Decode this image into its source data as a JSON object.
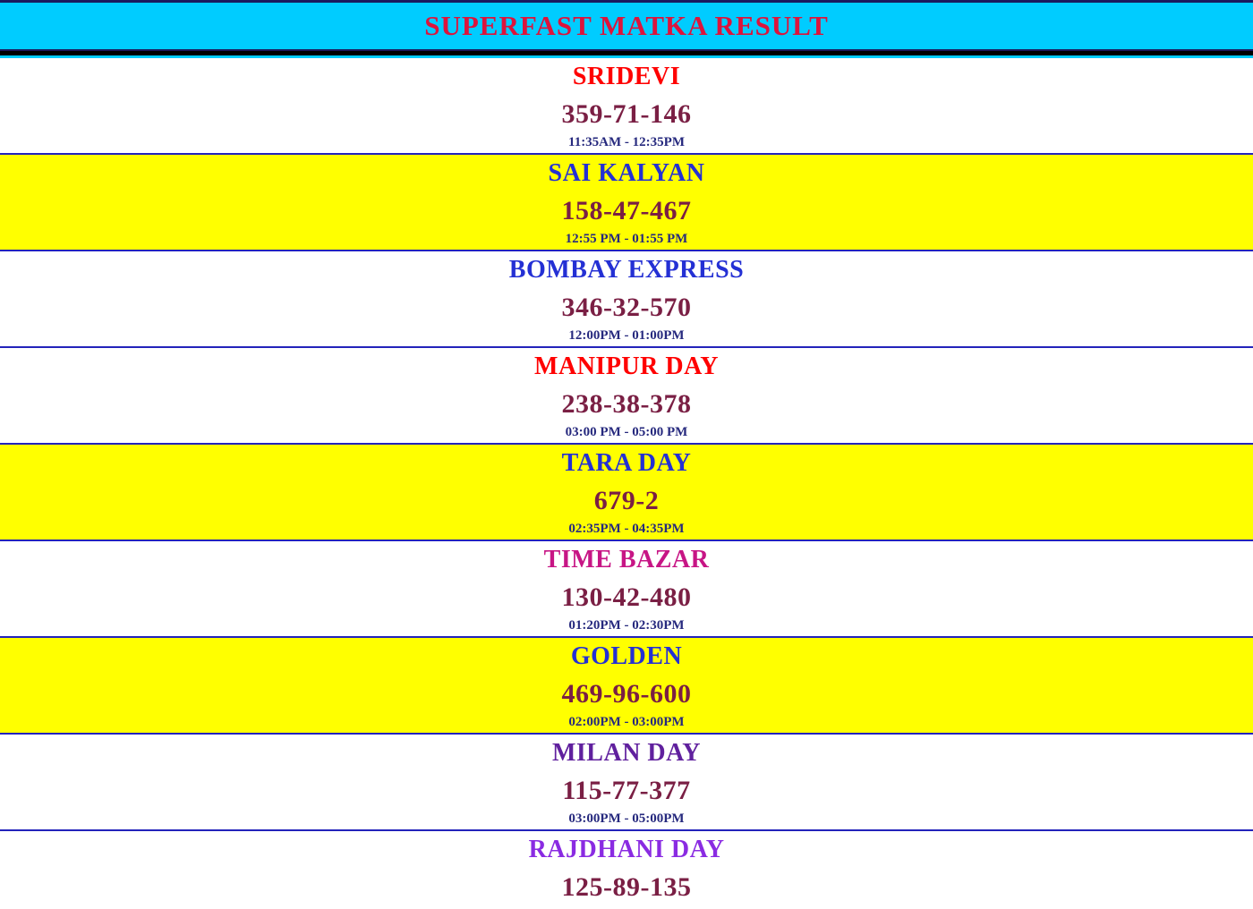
{
  "header": {
    "title": "SUPERFAST MATKA RESULT"
  },
  "colors": {
    "header_bg": "#00CCFF",
    "header_title": "#DC143C",
    "header_border": "#1A1A5E",
    "divider_black": "#000000",
    "cyan_strip": "#00CCFF",
    "row_separator": "#2323BB",
    "result_text": "#7A1F44",
    "time_text": "#26297E",
    "yellow_row": "#FFFF00",
    "white_row": "#FFFFFF"
  },
  "markets": [
    {
      "name": "SRIDEVI",
      "result": "359-71-146",
      "time": "11:35AM - 12:35PM",
      "name_color": "#FF0000",
      "row_bg": "#FFFFFF"
    },
    {
      "name": "SAI KALYAN",
      "result": "158-47-467",
      "time": "12:55 PM - 01:55 PM",
      "name_color": "#2430D4",
      "row_bg": "#FFFF00"
    },
    {
      "name": "BOMBAY EXPRESS",
      "result": "346-32-570",
      "time": "12:00PM - 01:00PM",
      "name_color": "#2430D4",
      "row_bg": "#FFFFFF"
    },
    {
      "name": "MANIPUR DAY",
      "result": "238-38-378",
      "time": "03:00 PM - 05:00 PM",
      "name_color": "#FF0000",
      "row_bg": "#FFFFFF"
    },
    {
      "name": "TARA DAY",
      "result": "679-2",
      "time": "02:35PM - 04:35PM",
      "name_color": "#2430D4",
      "row_bg": "#FFFF00"
    },
    {
      "name": "TIME BAZAR",
      "result": "130-42-480",
      "time": "01:20PM - 02:30PM",
      "name_color": "#C71585",
      "row_bg": "#FFFFFF"
    },
    {
      "name": "GOLDEN",
      "result": "469-96-600",
      "time": "02:00PM - 03:00PM",
      "name_color": "#2430D4",
      "row_bg": "#FFFF00"
    },
    {
      "name": "MILAN DAY",
      "result": "115-77-377",
      "time": "03:00PM - 05:00PM",
      "name_color": "#60209E",
      "row_bg": "#FFFFFF"
    },
    {
      "name": "RAJDHANI DAY",
      "result": "125-89-135",
      "time": "",
      "name_color": "#8A2BE2",
      "row_bg": "#FFFFFF"
    }
  ]
}
